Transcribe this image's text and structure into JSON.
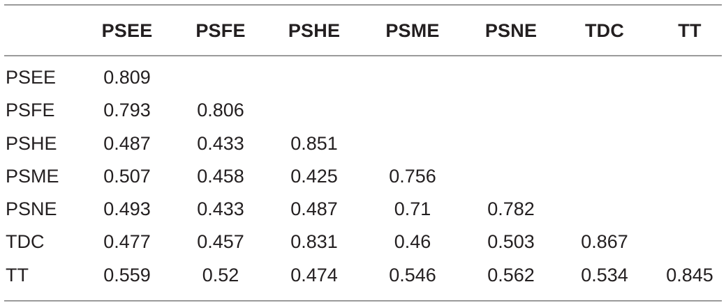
{
  "table": {
    "columns": [
      "PSEE",
      "PSFE",
      "PSHE",
      "PSME",
      "PSNE",
      "TDC",
      "TT"
    ],
    "rows": [
      {
        "label": "PSEE",
        "cells": [
          "0.809",
          "",
          "",
          "",
          "",
          "",
          ""
        ]
      },
      {
        "label": "PSFE",
        "cells": [
          "0.793",
          "0.806",
          "",
          "",
          "",
          "",
          ""
        ]
      },
      {
        "label": "PSHE",
        "cells": [
          "0.487",
          "0.433",
          "0.851",
          "",
          "",
          "",
          ""
        ]
      },
      {
        "label": "PSME",
        "cells": [
          "0.507",
          "0.458",
          "0.425",
          "0.756",
          "",
          "",
          ""
        ]
      },
      {
        "label": "PSNE",
        "cells": [
          "0.493",
          "0.433",
          "0.487",
          "0.71",
          "0.782",
          "",
          ""
        ]
      },
      {
        "label": "TDC",
        "cells": [
          "0.477",
          "0.457",
          "0.831",
          "0.46",
          "0.503",
          "0.867",
          ""
        ]
      },
      {
        "label": "TT",
        "cells": [
          "0.559",
          "0.52",
          "0.474",
          "0.546",
          "0.562",
          "0.534",
          "0.845"
        ]
      }
    ]
  }
}
